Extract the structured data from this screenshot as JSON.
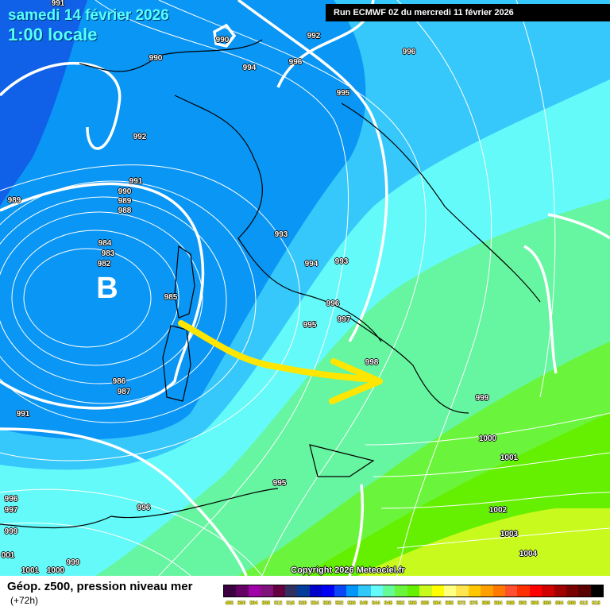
{
  "header": {
    "date": "samedi 14 février 2026",
    "time": "1:00 locale",
    "run": "Run ECMWF 0Z du mercredi 11 février 2026"
  },
  "map": {
    "low_marker": "B",
    "copyright": "Copyright 2026 Meteociel.fr",
    "arrow_color": "#ffe600",
    "isobar_labels": [
      "991",
      "990",
      "992",
      "990",
      "994",
      "996",
      "996",
      "995",
      "992",
      "991",
      "990",
      "989",
      "988",
      "989",
      "984",
      "983",
      "982",
      "985",
      "993",
      "994",
      "993",
      "996",
      "997",
      "995",
      "998",
      "999",
      "986",
      "987",
      "991",
      "1000",
      "1001",
      "995",
      "996",
      "996",
      "997",
      "999",
      "1002",
      "1003",
      "1004",
      "999",
      "001",
      "1001",
      "1000"
    ]
  },
  "footer": {
    "title": "Géop. z500, pression niveau mer",
    "subtitle": "(+72h)"
  },
  "legend": {
    "values": [
      "496",
      "500",
      "504",
      "508",
      "512",
      "516",
      "520",
      "524",
      "528",
      "532",
      "536",
      "540",
      "544",
      "548",
      "552",
      "556",
      "560",
      "564",
      "568",
      "572",
      "576",
      "580",
      "584",
      "588",
      "592",
      "596",
      "600",
      "604",
      "608",
      "612",
      "616"
    ],
    "colors": [
      "#3c0040",
      "#640064",
      "#a000a8",
      "#80107a",
      "#640040",
      "#303060",
      "#003c9a",
      "#0000c8",
      "#0000f5",
      "#0a46f5",
      "#0096fa",
      "#30c8fa",
      "#64fafa",
      "#64fa96",
      "#6af53c",
      "#64f000",
      "#c8fa1e",
      "#ffff00",
      "#ffff80",
      "#ffe650",
      "#ffc800",
      "#ffa000",
      "#ff7800",
      "#ff5030",
      "#ff3000",
      "#ff0000",
      "#d00000",
      "#a00000",
      "#780000",
      "#5a0000",
      "#000000"
    ]
  }
}
